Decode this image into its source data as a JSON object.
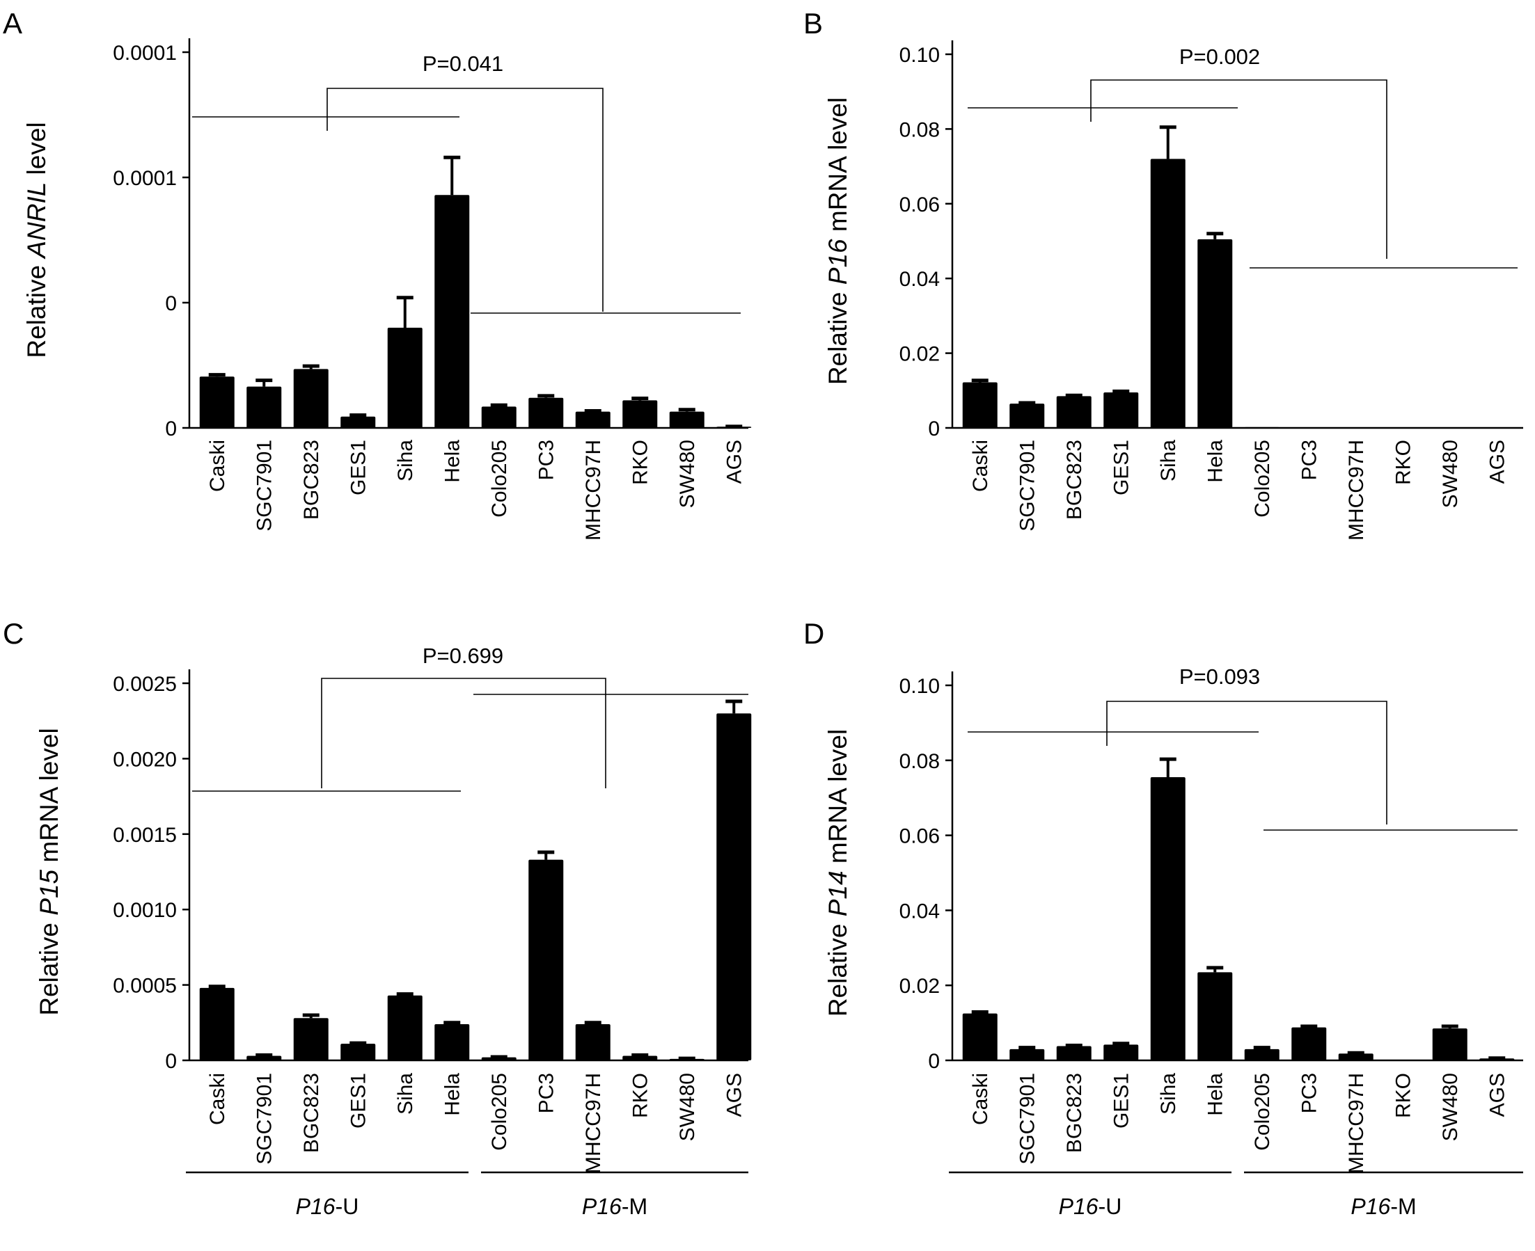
{
  "chart_data": [
    {
      "panel_label": "A",
      "type": "bar",
      "ylabel_parts": [
        {
          "text": "Relative ",
          "italic": false
        },
        {
          "text": "ANRIL",
          "italic": true
        },
        {
          "text": " level",
          "italic": false
        }
      ],
      "yticks": [
        "0",
        "0",
        "0.0001",
        "0.0001"
      ],
      "ylim": [
        0,
        0.00015
      ],
      "categories": [
        "Caski",
        "SGC7901",
        "BGC823",
        "GES1",
        "Siha",
        "Hela",
        "Colo205",
        "PC3",
        "MHCC97H",
        "RKO",
        "SW480",
        "AGS"
      ],
      "values": [
        2.05e-05,
        1.65e-05,
        2.35e-05,
        4.5e-06,
        4e-05,
        9.3e-05,
        8.5e-06,
        1.2e-05,
        6.5e-06,
        1.1e-05,
        6.5e-06,
        5e-07
      ],
      "errors": [
        7e-07,
        2.5e-06,
        1.2e-06,
        6e-07,
        1.2e-05,
        1.5e-05,
        6e-07,
        8e-07,
        3e-07,
        8e-07,
        8e-07,
        1e-07
      ],
      "p_value": "P=0.041",
      "group_labels": []
    },
    {
      "panel_label": "B",
      "type": "bar",
      "ylabel_parts": [
        {
          "text": "Relative ",
          "italic": false
        },
        {
          "text": "P16",
          "italic": true
        },
        {
          "text": " mRNA level",
          "italic": false
        }
      ],
      "yticks": [
        "0",
        "0.02",
        "0.04",
        "0.06",
        "0.08",
        "0.10"
      ],
      "ylim": [
        0,
        0.1
      ],
      "categories": [
        "Caski",
        "SGC7901",
        "BGC823",
        "GES1",
        "Siha",
        "Hela",
        "Colo205",
        "PC3",
        "MHCC97H",
        "RKO",
        "SW480",
        "AGS"
      ],
      "values": [
        0.0122,
        0.0065,
        0.0085,
        0.0095,
        0.072,
        0.0505,
        0.0002,
        0,
        0,
        0,
        0,
        0
      ],
      "errors": [
        0.0005,
        0.0002,
        0.0002,
        0.0003,
        0.0085,
        0.0015,
        0,
        0,
        0,
        0,
        0,
        0
      ],
      "p_value": "P=0.002",
      "group_labels": []
    },
    {
      "panel_label": "C",
      "type": "bar",
      "ylabel_parts": [
        {
          "text": "Relative ",
          "italic": false
        },
        {
          "text": "P15",
          "italic": true
        },
        {
          "text": " mRNA level",
          "italic": false
        }
      ],
      "yticks": [
        "0",
        "0.0005",
        "0.0010",
        "0.0015",
        "0.0020",
        "0.0025"
      ],
      "ylim": [
        0,
        0.0025
      ],
      "categories": [
        "Caski",
        "SGC7901",
        "BGC823",
        "GES1",
        "Siha",
        "Hela",
        "Colo205",
        "PC3",
        "MHCC97H",
        "RKO",
        "SW480",
        "AGS"
      ],
      "values": [
        0.00048,
        3e-05,
        0.00028,
        0.00011,
        0.00043,
        0.00024,
        2e-05,
        0.00133,
        0.00024,
        3e-05,
        1e-05,
        0.0023
      ],
      "errors": [
        1e-05,
        5e-06,
        2e-05,
        5e-06,
        1e-05,
        1e-05,
        3e-06,
        5e-05,
        1e-05,
        5e-06,
        3e-06,
        8e-05
      ],
      "p_value": "P=0.699",
      "group_labels": [
        {
          "italic": "P16",
          "rest": "-U"
        },
        {
          "italic": "P16",
          "rest": "-M"
        }
      ]
    },
    {
      "panel_label": "D",
      "type": "bar",
      "ylabel_parts": [
        {
          "text": "Relative ",
          "italic": false
        },
        {
          "text": "P14",
          "italic": true
        },
        {
          "text": " mRNA level",
          "italic": false
        }
      ],
      "yticks": [
        "0",
        "0.02",
        "0.04",
        "0.06",
        "0.08",
        "0.10"
      ],
      "ylim": [
        0,
        0.1
      ],
      "categories": [
        "Caski",
        "SGC7901",
        "BGC823",
        "GES1",
        "Siha",
        "Hela",
        "Colo205",
        "PC3",
        "MHCC97H",
        "RKO",
        "SW480",
        "AGS"
      ],
      "values": [
        0.0125,
        0.003,
        0.0038,
        0.0042,
        0.0755,
        0.0235,
        0.003,
        0.0088,
        0.0018,
        0,
        0.0085,
        0.0005
      ],
      "errors": [
        0.0004,
        0.0004,
        0.0002,
        0.0003,
        0.0048,
        0.0012,
        0.0004,
        0.0003,
        0.0002,
        0,
        0.0006,
        0.0001
      ],
      "p_value": "P=0.093",
      "group_labels": [
        {
          "italic": "P16",
          "rest": "-U"
        },
        {
          "italic": "P16",
          "rest": "-M"
        }
      ]
    }
  ]
}
